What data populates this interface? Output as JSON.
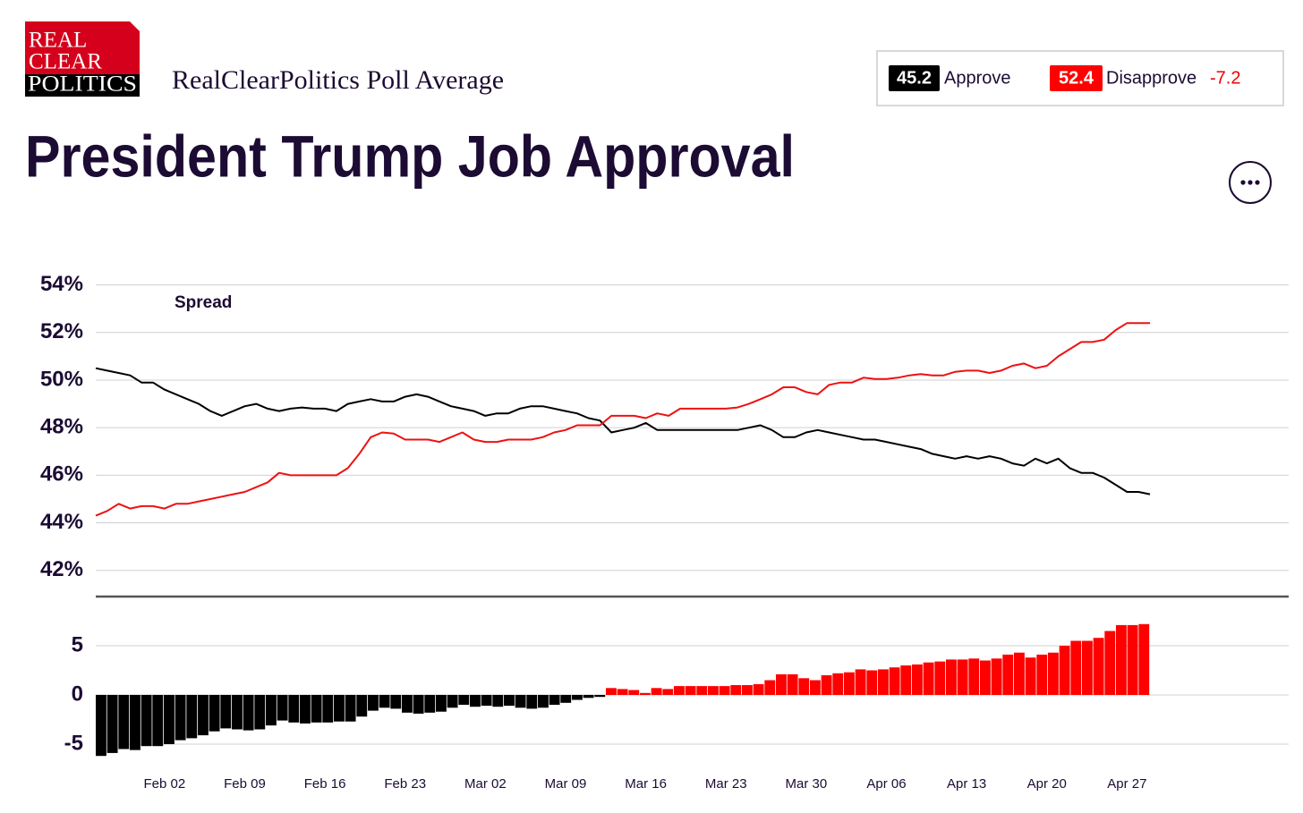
{
  "header": {
    "logo": [
      "REAL",
      "CLEAR",
      "POLITICS"
    ],
    "subtitle": "RealClearPolitics Poll Average",
    "approve": 45.2,
    "disapprove": 52.4,
    "spread": -7.2
  },
  "chart_data": [
    {
      "type": "line",
      "title": "President Trump Job Approval",
      "annotation": "Spread",
      "series": [
        {
          "name": "Approve",
          "color": "#000000",
          "values": [
            50.5,
            50.4,
            50.3,
            50.2,
            49.9,
            49.9,
            49.6,
            49.4,
            49.2,
            49.0,
            48.7,
            48.5,
            48.7,
            48.9,
            49.0,
            48.8,
            48.7,
            48.8,
            48.85,
            48.8,
            48.8,
            48.7,
            49.0,
            49.1,
            49.2,
            49.1,
            49.1,
            49.3,
            49.4,
            49.3,
            49.1,
            48.9,
            48.8,
            48.7,
            48.5,
            48.6,
            48.6,
            48.8,
            48.9,
            48.9,
            48.8,
            48.7,
            48.6,
            48.4,
            48.3,
            47.8,
            47.9,
            48.0,
            48.2,
            47.9,
            47.9,
            47.9,
            47.9,
            47.9,
            47.9,
            47.9,
            47.9,
            48.0,
            48.1,
            47.9,
            47.6,
            47.6,
            47.8,
            47.9,
            47.8,
            47.7,
            47.6,
            47.5,
            47.5,
            47.4,
            47.3,
            47.2,
            47.1,
            46.9,
            46.8,
            46.7,
            46.8,
            46.7,
            46.8,
            46.7,
            46.5,
            46.4,
            46.7,
            46.5,
            46.7,
            46.3,
            46.1,
            46.1,
            45.9,
            45.6,
            45.3,
            45.3,
            45.2
          ]
        },
        {
          "name": "Disapprove",
          "color": "#ee1111",
          "values": [
            44.3,
            44.5,
            44.8,
            44.6,
            44.7,
            44.7,
            44.6,
            44.8,
            44.8,
            44.9,
            45.0,
            45.1,
            45.2,
            45.3,
            45.5,
            45.7,
            46.1,
            46.0,
            46.0,
            46.0,
            46.0,
            46.0,
            46.3,
            46.9,
            47.6,
            47.8,
            47.75,
            47.5,
            47.5,
            47.5,
            47.4,
            47.6,
            47.8,
            47.5,
            47.4,
            47.4,
            47.5,
            47.5,
            47.5,
            47.6,
            47.8,
            47.9,
            48.1,
            48.1,
            48.1,
            48.5,
            48.5,
            48.5,
            48.4,
            48.6,
            48.5,
            48.8,
            48.8,
            48.8,
            48.8,
            48.8,
            48.85,
            49.0,
            49.2,
            49.4,
            49.7,
            49.7,
            49.5,
            49.4,
            49.8,
            49.9,
            49.9,
            50.1,
            50.05,
            50.05,
            50.1,
            50.2,
            50.25,
            50.2,
            50.2,
            50.35,
            50.4,
            50.4,
            50.3,
            50.4,
            50.6,
            50.7,
            50.5,
            50.6,
            51.0,
            51.3,
            51.6,
            51.6,
            51.7,
            52.1,
            52.4,
            52.4,
            52.4
          ]
        }
      ],
      "ylim": [
        40.9,
        54.7
      ],
      "yticks": [
        {
          "value": 42,
          "label": "42%"
        },
        {
          "value": 44,
          "label": "44%"
        },
        {
          "value": 46,
          "label": "46%"
        },
        {
          "value": 48,
          "label": "48%"
        },
        {
          "value": 50,
          "label": "50%"
        },
        {
          "value": 52,
          "label": "52%"
        },
        {
          "value": 54,
          "label": "54%"
        }
      ],
      "grid": true
    },
    {
      "type": "bar",
      "categories": [
        null,
        null,
        null,
        null,
        null,
        null,
        "Feb 02",
        null,
        null,
        null,
        null,
        null,
        null,
        "Feb 09",
        null,
        null,
        null,
        null,
        null,
        null,
        "Feb 16",
        null,
        null,
        null,
        null,
        null,
        null,
        "Feb 23",
        null,
        null,
        null,
        null,
        null,
        null,
        "Mar 02",
        null,
        null,
        null,
        null,
        null,
        null,
        "Mar 09",
        null,
        null,
        null,
        null,
        null,
        null,
        "Mar 16",
        null,
        null,
        null,
        null,
        null,
        null,
        "Mar 23",
        null,
        null,
        null,
        null,
        null,
        null,
        "Mar 30",
        null,
        null,
        null,
        null,
        null,
        null,
        "Apr 06",
        null,
        null,
        null,
        null,
        null,
        null,
        "Apr 13",
        null,
        null,
        null,
        null,
        null,
        null,
        "Apr 20",
        null,
        null,
        null,
        null,
        null,
        null,
        "Apr 27",
        null,
        null
      ],
      "values": [
        -6.2,
        -5.9,
        -5.5,
        -5.6,
        -5.2,
        -5.2,
        -5.0,
        -4.6,
        -4.4,
        -4.1,
        -3.7,
        -3.4,
        -3.5,
        -3.6,
        -3.5,
        -3.1,
        -2.6,
        -2.8,
        -2.9,
        -2.8,
        -2.8,
        -2.7,
        -2.7,
        -2.2,
        -1.6,
        -1.3,
        -1.4,
        -1.8,
        -1.9,
        -1.8,
        -1.7,
        -1.3,
        -1.0,
        -1.2,
        -1.1,
        -1.2,
        -1.1,
        -1.3,
        -1.4,
        -1.3,
        -1.0,
        -0.8,
        -0.5,
        -0.3,
        -0.2,
        0.7,
        0.6,
        0.5,
        0.2,
        0.7,
        0.6,
        0.9,
        0.9,
        0.9,
        0.9,
        0.9,
        1.0,
        1.0,
        1.1,
        1.5,
        2.1,
        2.1,
        1.7,
        1.5,
        2.0,
        2.2,
        2.3,
        2.6,
        2.5,
        2.6,
        2.8,
        3.0,
        3.1,
        3.3,
        3.4,
        3.6,
        3.6,
        3.7,
        3.5,
        3.7,
        4.1,
        4.3,
        3.8,
        4.1,
        4.3,
        5.0,
        5.5,
        5.5,
        5.8,
        6.5,
        7.1,
        7.1,
        7.2
      ],
      "color_positive": "#ff0000",
      "color_negative": "#000000",
      "ylim": [
        -6,
        10
      ],
      "yticks": [
        -5,
        0,
        5
      ],
      "grid": true
    }
  ]
}
